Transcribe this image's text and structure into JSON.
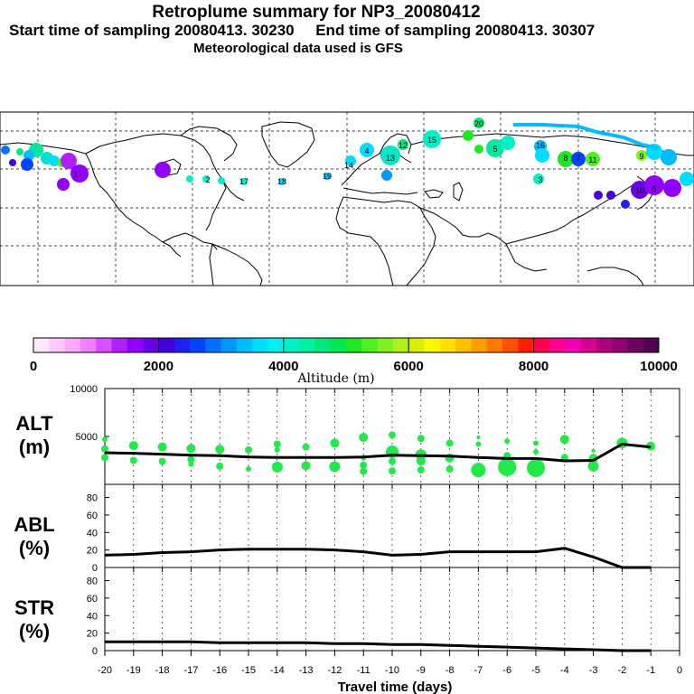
{
  "header": {
    "title": "Retroplume summary for NP3_20080412",
    "sampling": "Start time of sampling 20080413. 30230     End time of sampling 20080413. 30307",
    "met": "Meteorological data used is GFS"
  },
  "colorbar": {
    "ticks": [
      "0",
      "2000",
      "4000",
      "6000",
      "8000",
      "10000"
    ],
    "label": "Altitude (m)",
    "colors": [
      "#ffe8ff",
      "#ffc8ff",
      "#ffa8ff",
      "#f080ff",
      "#d850ff",
      "#b020ff",
      "#9000ff",
      "#6a00e8",
      "#4400d8",
      "#2020f0",
      "#0044ff",
      "#0070ff",
      "#0098ff",
      "#00bcff",
      "#00dcff",
      "#00f0f0",
      "#00f0c8",
      "#00f0a0",
      "#00e878",
      "#00e850",
      "#20e820",
      "#50f020",
      "#80f020",
      "#b0f020",
      "#d8f000",
      "#f8f800",
      "#ffe000",
      "#ffc000",
      "#ff9c00",
      "#ff7800",
      "#ff5000",
      "#ff2000",
      "#ff0050",
      "#ff0090",
      "#f000b0",
      "#d80090",
      "#b00080",
      "#900070",
      "#700060",
      "#500050"
    ]
  },
  "map_labels": [
    "12",
    "13",
    "14",
    "15",
    "16",
    "17",
    "18",
    "19",
    "20",
    "11",
    "10",
    "9",
    "8",
    "7",
    "6",
    "5",
    "4",
    "3",
    "2",
    "1"
  ],
  "chart_data": [
    {
      "type": "line",
      "name": "ALT",
      "ylabel": "ALT (m)",
      "ylabel_top": "ALT",
      "ylabel_unit": "(m)",
      "ylim": [
        0,
        10000
      ],
      "yticks": [
        "5000",
        "10000"
      ],
      "x": [
        -20,
        -19,
        -18,
        -17,
        -16,
        -15,
        -14,
        -13,
        -12,
        -11,
        -10,
        -9,
        -8,
        -7,
        -6,
        -5,
        -4,
        -3,
        -2,
        -1
      ],
      "values": [
        3300,
        3250,
        3150,
        3050,
        3000,
        2850,
        2800,
        2800,
        2800,
        2850,
        3050,
        3000,
        2950,
        2800,
        2700,
        2700,
        2450,
        2500,
        4200,
        3900
      ],
      "scatter": [
        {
          "x": -20,
          "y": 4700,
          "s": 3
        },
        {
          "x": -20,
          "y": 3700,
          "s": 4
        },
        {
          "x": -20,
          "y": 2800,
          "s": 4
        },
        {
          "x": -19,
          "y": 4050,
          "s": 5
        },
        {
          "x": -19,
          "y": 2500,
          "s": 4
        },
        {
          "x": -18,
          "y": 3900,
          "s": 5
        },
        {
          "x": -18,
          "y": 2400,
          "s": 4
        },
        {
          "x": -17,
          "y": 3750,
          "s": 5
        },
        {
          "x": -17,
          "y": 2600,
          "s": 4
        },
        {
          "x": -17,
          "y": 2100,
          "s": 3
        },
        {
          "x": -16,
          "y": 3650,
          "s": 5
        },
        {
          "x": -16,
          "y": 1900,
          "s": 4
        },
        {
          "x": -15,
          "y": 3600,
          "s": 4
        },
        {
          "x": -15,
          "y": 1600,
          "s": 3
        },
        {
          "x": -14,
          "y": 4200,
          "s": 4
        },
        {
          "x": -14,
          "y": 3600,
          "s": 3
        },
        {
          "x": -14,
          "y": 1800,
          "s": 6
        },
        {
          "x": -13,
          "y": 3900,
          "s": 4
        },
        {
          "x": -13,
          "y": 1950,
          "s": 5
        },
        {
          "x": -12,
          "y": 4300,
          "s": 5
        },
        {
          "x": -12,
          "y": 1850,
          "s": 6
        },
        {
          "x": -11,
          "y": 4900,
          "s": 5
        },
        {
          "x": -11,
          "y": 2800,
          "s": 3
        },
        {
          "x": -11,
          "y": 2000,
          "s": 4
        },
        {
          "x": -11,
          "y": 1350,
          "s": 4
        },
        {
          "x": -10,
          "y": 5150,
          "s": 4
        },
        {
          "x": -10,
          "y": 3400,
          "s": 7
        },
        {
          "x": -10,
          "y": 2400,
          "s": 4
        },
        {
          "x": -10,
          "y": 1400,
          "s": 4
        },
        {
          "x": -9,
          "y": 4800,
          "s": 4
        },
        {
          "x": -9,
          "y": 3100,
          "s": 6
        },
        {
          "x": -9,
          "y": 2450,
          "s": 5
        },
        {
          "x": -9,
          "y": 1500,
          "s": 4
        },
        {
          "x": -8,
          "y": 4300,
          "s": 4
        },
        {
          "x": -8,
          "y": 2750,
          "s": 5
        },
        {
          "x": -8,
          "y": 1600,
          "s": 4
        },
        {
          "x": -7,
          "y": 4900,
          "s": 2
        },
        {
          "x": -7,
          "y": 4200,
          "s": 3
        },
        {
          "x": -7,
          "y": 1500,
          "s": 8
        },
        {
          "x": -6,
          "y": 4500,
          "s": 3
        },
        {
          "x": -6,
          "y": 3000,
          "s": 4
        },
        {
          "x": -6,
          "y": 1800,
          "s": 10
        },
        {
          "x": -5,
          "y": 4300,
          "s": 3
        },
        {
          "x": -5,
          "y": 3400,
          "s": 3
        },
        {
          "x": -5,
          "y": 1700,
          "s": 10
        },
        {
          "x": -4,
          "y": 4700,
          "s": 5
        },
        {
          "x": -4,
          "y": 2800,
          "s": 4
        },
        {
          "x": -3,
          "y": 3500,
          "s": 2
        },
        {
          "x": -3,
          "y": 2700,
          "s": 5
        },
        {
          "x": -3,
          "y": 1900,
          "s": 6
        },
        {
          "x": -2,
          "y": 4300,
          "s": 6
        },
        {
          "x": -1,
          "y": 4000,
          "s": 5
        }
      ]
    },
    {
      "type": "line",
      "name": "ABL",
      "ylabel": "ABL (%)",
      "ylabel_top": "ABL",
      "ylabel_unit": "(%)",
      "ylim": [
        0,
        95
      ],
      "yticks": [
        "0",
        "20",
        "40",
        "60",
        "80"
      ],
      "x": [
        -20,
        -19,
        -18,
        -17,
        -16,
        -15,
        -14,
        -13,
        -12,
        -11,
        -10,
        -9,
        -8,
        -7,
        -6,
        -5,
        -4,
        -3,
        -2,
        -1
      ],
      "values": [
        14,
        15,
        17,
        18,
        20,
        21,
        21,
        21,
        20,
        18,
        14,
        15,
        18,
        18,
        18,
        18,
        22,
        12,
        0,
        0
      ]
    },
    {
      "type": "line",
      "name": "STR",
      "ylabel": "STR (%)",
      "ylabel_top": "STR",
      "ylabel_unit": "(%)",
      "ylim": [
        0,
        95
      ],
      "yticks": [
        "0",
        "20",
        "40",
        "60",
        "80"
      ],
      "x": [
        -20,
        -19,
        -18,
        -17,
        -16,
        -15,
        -14,
        -13,
        -12,
        -11,
        -10,
        -9,
        -8,
        -7,
        -6,
        -5,
        -4,
        -3,
        -2,
        -1
      ],
      "values": [
        10,
        10,
        10,
        10,
        9,
        9,
        9,
        9,
        8,
        8,
        7,
        7,
        6,
        5,
        4,
        3,
        2,
        1,
        0,
        0
      ]
    }
  ],
  "xaxis": {
    "ticks": [
      "-20",
      "-19",
      "-18",
      "-17",
      "-16",
      "-15",
      "-14",
      "-13",
      "-12",
      "-11",
      "-10",
      "-9",
      "-8",
      "-7",
      "-6",
      "-5",
      "-4",
      "-3",
      "-2",
      "-1",
      "0"
    ],
    "label": "Travel time (days)"
  }
}
